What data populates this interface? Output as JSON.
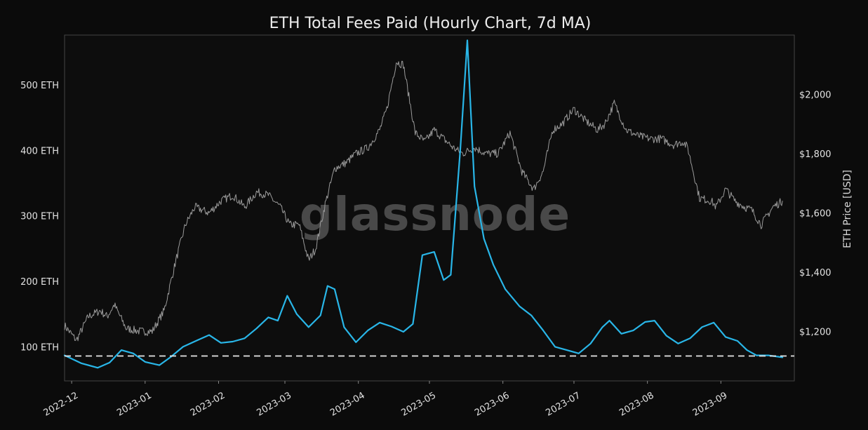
{
  "chart_data": {
    "type": "line",
    "title": "ETH Total Fees Paid (Hourly Chart, 7d MA)",
    "watermark": "glassnode",
    "x_ticks": [
      "2022-12",
      "2023-01",
      "2023-02",
      "2023-03",
      "2023-04",
      "2023-05",
      "2023-06",
      "2023-07",
      "2023-08",
      "2023-09"
    ],
    "y_left": {
      "ticks": [
        "100 ETH",
        "200 ETH",
        "300 ETH",
        "400 ETH",
        "500 ETH"
      ],
      "tick_values": [
        100,
        200,
        300,
        400,
        500
      ],
      "ylim": [
        48,
        576
      ]
    },
    "y_right": {
      "label": "ETH Price [USD]",
      "ticks": [
        "$1,200",
        "$1,400",
        "$1,600",
        "$1,800",
        "$2,000"
      ],
      "tick_values": [
        1200,
        1400,
        1600,
        1800,
        2000
      ],
      "ylim": [
        1033,
        2200
      ]
    },
    "reference_line": {
      "value": 86,
      "style": "dashed",
      "color": "#e8e8e8"
    },
    "xlim": [
      "2022-11-28",
      "2023-10-02"
    ],
    "series": [
      {
        "axis": "left",
        "color": "#29b6e8",
        "x": [
          "2022-11-28",
          "2022-12-05",
          "2022-12-12",
          "2022-12-17",
          "2022-12-22",
          "2022-12-27",
          "2023-01-01",
          "2023-01-07",
          "2023-01-12",
          "2023-01-17",
          "2023-01-23",
          "2023-01-28",
          "2023-02-02",
          "2023-02-07",
          "2023-02-12",
          "2023-02-17",
          "2023-02-22",
          "2023-02-26",
          "2023-03-02",
          "2023-03-06",
          "2023-03-11",
          "2023-03-16",
          "2023-03-19",
          "2023-03-22",
          "2023-03-26",
          "2023-03-31",
          "2023-04-05",
          "2023-04-10",
          "2023-04-15",
          "2023-04-20",
          "2023-04-24",
          "2023-04-28",
          "2023-05-03",
          "2023-05-07",
          "2023-05-10",
          "2023-05-14",
          "2023-05-17",
          "2023-05-20",
          "2023-05-24",
          "2023-05-28",
          "2023-06-02",
          "2023-06-08",
          "2023-06-13",
          "2023-06-18",
          "2023-06-23",
          "2023-06-28",
          "2023-07-03",
          "2023-07-08",
          "2023-07-13",
          "2023-07-16",
          "2023-07-21",
          "2023-07-26",
          "2023-07-31",
          "2023-08-04",
          "2023-08-09",
          "2023-08-14",
          "2023-08-19",
          "2023-08-24",
          "2023-08-29",
          "2023-09-03",
          "2023-09-08",
          "2023-09-12",
          "2023-09-16",
          "2023-09-21",
          "2023-09-27"
        ],
        "values": [
          87,
          75,
          68,
          76,
          95,
          90,
          77,
          72,
          85,
          100,
          110,
          118,
          106,
          108,
          113,
          128,
          145,
          140,
          178,
          150,
          130,
          148,
          193,
          188,
          130,
          107,
          125,
          137,
          131,
          123,
          135,
          240,
          245,
          202,
          210,
          400,
          568,
          345,
          265,
          225,
          188,
          162,
          148,
          125,
          100,
          95,
          90,
          105,
          130,
          140,
          120,
          125,
          138,
          140,
          117,
          105,
          113,
          130,
          137,
          115,
          109,
          95,
          87,
          87,
          84
        ]
      },
      {
        "axis": "right",
        "color": "#9a9a9a",
        "x": [
          "2022-11-28",
          "2022-12-03",
          "2022-12-08",
          "2022-12-13",
          "2022-12-16",
          "2022-12-19",
          "2022-12-24",
          "2022-12-30",
          "2023-01-04",
          "2023-01-09",
          "2023-01-14",
          "2023-01-18",
          "2023-01-22",
          "2023-01-28",
          "2023-02-02",
          "2023-02-07",
          "2023-02-12",
          "2023-02-17",
          "2023-02-22",
          "2023-02-27",
          "2023-03-03",
          "2023-03-07",
          "2023-03-11",
          "2023-03-14",
          "2023-03-18",
          "2023-03-22",
          "2023-03-27",
          "2023-03-31",
          "2023-04-05",
          "2023-04-10",
          "2023-04-13",
          "2023-04-17",
          "2023-04-20",
          "2023-04-25",
          "2023-04-29",
          "2023-05-03",
          "2023-05-07",
          "2023-05-11",
          "2023-05-15",
          "2023-05-20",
          "2023-05-25",
          "2023-05-30",
          "2023-06-04",
          "2023-06-09",
          "2023-06-14",
          "2023-06-18",
          "2023-06-22",
          "2023-06-26",
          "2023-07-01",
          "2023-07-06",
          "2023-07-11",
          "2023-07-14",
          "2023-07-18",
          "2023-07-23",
          "2023-07-28",
          "2023-08-02",
          "2023-08-07",
          "2023-08-12",
          "2023-08-16",
          "2023-08-18",
          "2023-08-23",
          "2023-08-28",
          "2023-08-30",
          "2023-09-03",
          "2023-09-07",
          "2023-09-11",
          "2023-09-14",
          "2023-09-18",
          "2023-09-23",
          "2023-09-27"
        ],
        "values": [
          1220,
          1170,
          1250,
          1270,
          1250,
          1290,
          1210,
          1200,
          1200,
          1270,
          1440,
          1560,
          1620,
          1600,
          1640,
          1660,
          1620,
          1670,
          1660,
          1620,
          1560,
          1560,
          1440,
          1480,
          1630,
          1750,
          1770,
          1800,
          1820,
          1880,
          1950,
          2110,
          2100,
          1870,
          1840,
          1880,
          1850,
          1820,
          1800,
          1820,
          1800,
          1800,
          1870,
          1740,
          1680,
          1740,
          1880,
          1900,
          1950,
          1910,
          1880,
          1900,
          1970,
          1880,
          1860,
          1850,
          1850,
          1830,
          1840,
          1820,
          1650,
          1640,
          1620,
          1680,
          1640,
          1620,
          1610,
          1560,
          1620,
          1640
        ]
      }
    ]
  }
}
